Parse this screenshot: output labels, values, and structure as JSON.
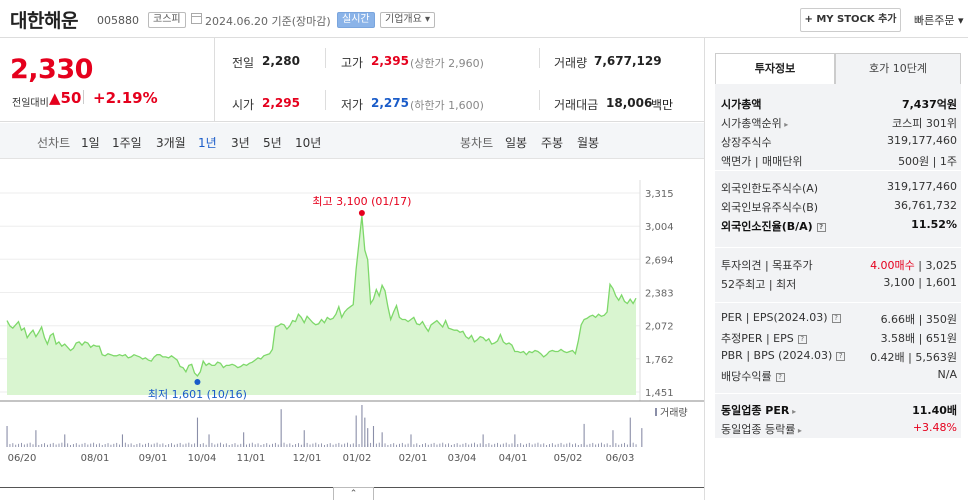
{
  "header": {
    "company": "대한해운",
    "code": "005880",
    "market": "코스피",
    "date": "2024.06.20 기준(장마감)",
    "realtime": "실시간",
    "company_info": "기업개요",
    "mystock": "+ MY STOCK 추가",
    "quick_order": "빠른주문"
  },
  "price": {
    "current": "2,330",
    "change_label": "전일대비",
    "change_abs": "▲50",
    "change_pct": "+2.19%",
    "prev_label": "전일",
    "prev_value": "2,280",
    "open_label": "시가",
    "open_value": "2,295",
    "high_label": "고가",
    "high_value": "2,395",
    "high_limit": "(상한가 2,960)",
    "low_label": "저가",
    "low_value": "2,275",
    "low_limit": "(하한가 1,600)",
    "volume_label": "거래량",
    "volume_value": "7,677,129",
    "amount_label": "거래대금",
    "amount_value": "18,006",
    "amount_unit": "백만"
  },
  "tabs": {
    "line_label": "선차트",
    "periods": [
      "1일",
      "1주일",
      "3개월",
      "1년",
      "3년",
      "5년",
      "10년"
    ],
    "active": "1년",
    "candle_label": "봉차트",
    "candles": [
      "일봉",
      "주봉",
      "월봉"
    ]
  },
  "chart_data": {
    "type": "area",
    "x_labels": [
      "06/20",
      "08/01",
      "09/01",
      "10/04",
      "11/01",
      "12/01",
      "01/02",
      "02/01",
      "03/04",
      "04/01",
      "05/02",
      "06/03"
    ],
    "y_ticks": [
      3315,
      3004,
      2694,
      2383,
      2072,
      1762,
      1451
    ],
    "ylim": [
      1451,
      3315
    ],
    "max_label": "최고 3,100 (01/17)",
    "min_label": "최저 1,601 (10/16)",
    "volume_label": "거래량",
    "colors": {
      "line": "#7ed86a",
      "fill": "#d9f5d0",
      "max": "#e5001d",
      "min": "#1a5cc9",
      "volume": "#8a8ea8"
    },
    "prices": [
      2120,
      2070,
      2050,
      2080,
      2110,
      2030,
      2050,
      1960,
      2000,
      2030,
      1970,
      2010,
      2060,
      1960,
      1900,
      1980,
      2000,
      1900,
      1920,
      1880,
      1900,
      1870,
      1840,
      1860,
      1910,
      1920,
      1890,
      1920,
      1910,
      1870,
      1890,
      1880,
      1880,
      1800,
      1790,
      1810,
      1800,
      1790,
      1790,
      1800,
      1790,
      1800,
      1770,
      1780,
      1800,
      1790,
      1780,
      1760,
      1770,
      1750,
      1740,
      1780,
      1800,
      1800,
      1780,
      1780,
      1770,
      1790,
      1770,
      1750,
      1690,
      1680,
      1640,
      1700,
      1710,
      1630,
      1601,
      1640,
      1740,
      1700,
      1720,
      1700,
      1700,
      1730,
      1720,
      1680,
      1700,
      1700,
      1710,
      1700,
      1680,
      1690,
      1710,
      1700,
      1720,
      1730,
      1750,
      1770,
      1760,
      1790,
      1800,
      1810,
      1850,
      2060,
      2070,
      2090,
      2080,
      2040,
      2070,
      2120,
      2110,
      2180,
      2150,
      2100,
      2160,
      2130,
      2100,
      2080,
      2090,
      2130,
      2100,
      2150,
      2130,
      2140,
      2180,
      2250,
      2150,
      2200,
      2230,
      2250,
      2270,
      2600,
      2850,
      3100,
      2780,
      2690,
      2280,
      2320,
      2410,
      2350,
      2450,
      2400,
      2250,
      2130,
      2200,
      2260,
      2150,
      2130,
      2130,
      2110,
      2130,
      2150,
      2090,
      2080,
      2110,
      2060,
      2020,
      2080,
      2100,
      2120,
      2090,
      2060,
      2120,
      2050,
      2040,
      2030,
      2030,
      2010,
      2020,
      1970,
      1950,
      1980,
      1920,
      1940,
      1970,
      1960,
      1930,
      1950,
      1900,
      1910,
      1930,
      1990,
      1920,
      1900,
      1910,
      1890,
      1830,
      1830,
      1820,
      1830,
      1800,
      1830,
      1820,
      1840,
      1830,
      1810,
      1780,
      1800,
      1830,
      1840,
      1830,
      1830,
      1850,
      1830,
      1820,
      1830,
      1840,
      1810,
      1930,
      2080,
      2130,
      2140,
      2160,
      2170,
      2150,
      2180,
      2160,
      2170,
      2200,
      2460,
      2420,
      2350,
      2310,
      2360,
      2300,
      2280,
      2320,
      2280,
      2330
    ],
    "volume_spikes": [
      [
        0,
        0.5
      ],
      [
        10,
        0.4
      ],
      [
        20,
        0.3
      ],
      [
        40,
        0.3
      ],
      [
        66,
        0.7
      ],
      [
        70,
        0.3
      ],
      [
        82,
        0.35
      ],
      [
        95,
        0.9
      ],
      [
        103,
        0.4
      ],
      [
        121,
        0.75
      ],
      [
        123,
        1.0
      ],
      [
        124,
        0.7
      ],
      [
        125,
        0.45
      ],
      [
        127,
        0.5
      ],
      [
        130,
        0.35
      ],
      [
        140,
        0.3
      ],
      [
        165,
        0.3
      ],
      [
        176,
        0.3
      ],
      [
        200,
        0.55
      ],
      [
        210,
        0.4
      ],
      [
        216,
        0.7
      ],
      [
        220,
        0.45
      ]
    ]
  },
  "right": {
    "tab_info": "투자정보",
    "tab_quote": "호가 10단계",
    "rows1": [
      {
        "l": "시가총액",
        "r": "7,437억원",
        "bold": true
      },
      {
        "l": "시가총액순위",
        "r": "코스피 301위",
        "arrow": true
      },
      {
        "l": "상장주식수",
        "r": "319,177,460"
      },
      {
        "l": "액면가 | 매매단위",
        "r": "500원 | 1주"
      }
    ],
    "rows2": [
      {
        "l": "외국인한도주식수(A)",
        "r": "319,177,460"
      },
      {
        "l": "외국인보유주식수(B)",
        "r": "36,761,732"
      },
      {
        "l": "외국인소진율(B/A)",
        "r": "11.52%",
        "bold": true,
        "q": true
      }
    ],
    "rows3": [
      {
        "l": "투자의견 | 목표주가",
        "r_red": "4.00매수",
        "r": " | 3,025"
      },
      {
        "l": "52주최고 | 최저",
        "r": "3,100 | 1,601"
      }
    ],
    "rows4": [
      {
        "l": "PER | EPS(2024.03)",
        "r": "6.66배 | 350원",
        "q": true
      },
      {
        "l": "추정PER | EPS",
        "r": "3.58배 | 651원",
        "q": true
      },
      {
        "l": "PBR | BPS (2024.03)",
        "r": "0.42배 | 5,563원",
        "q": true
      },
      {
        "l": "배당수익률",
        "r": "N/A",
        "q": true
      }
    ],
    "rows5": [
      {
        "l": "동일업종 PER",
        "r": "11.40배",
        "bold": true,
        "arrow": true
      },
      {
        "l": "동일업종 등락률",
        "r_red": "+3.48%",
        "r": "",
        "arrow": true
      }
    ]
  }
}
